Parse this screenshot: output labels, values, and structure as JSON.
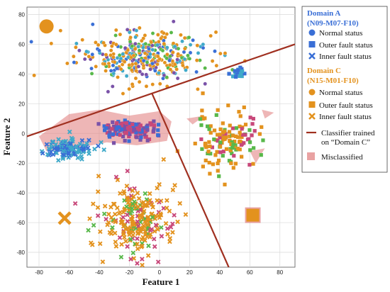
{
  "colors": {
    "domain_a": "#3a6fd6",
    "domain_a_alt": "#3fa9c9",
    "domain_c": "#e3921e",
    "misclassified": "#e07a7a",
    "classifier": "#a03020",
    "pink_marker": "#c8487a",
    "purple_marker": "#7a52a8",
    "green_marker": "#58b84a"
  },
  "chart_data": {
    "type": "scatter",
    "xlabel": "Feature 1",
    "ylabel": "Feature 2",
    "xlim": [
      -88,
      90
    ],
    "ylim": [
      -90,
      85
    ],
    "xticks": [
      -80,
      -60,
      -40,
      -20,
      0,
      20,
      40,
      60,
      80
    ],
    "yticks": [
      -80,
      -60,
      -40,
      -20,
      0,
      20,
      40,
      60,
      80
    ],
    "grid": true,
    "legend_placement": "right",
    "clusters": [
      {
        "name": "Domain A / Domain C normal status",
        "marker": "circle",
        "center": [
          -12,
          52
        ],
        "spread": [
          30,
          12
        ],
        "count": 380,
        "colors": [
          "#e3921e",
          "#e3921e",
          "#e3921e",
          "#3a6fd6",
          "#3fa9c9",
          "#58b84a",
          "#7a52a8"
        ]
      },
      {
        "name": "Domain A outer fault (small cluster)",
        "marker": "square",
        "center": [
          52,
          41
        ],
        "spread": [
          4,
          2
        ],
        "count": 25,
        "colors": [
          "#3a6fd6",
          "#3fa9c9"
        ]
      },
      {
        "name": "Domain A inner fault",
        "marker": "x",
        "center": [
          -62,
          -10
        ],
        "spread": [
          13,
          5
        ],
        "count": 130,
        "colors": [
          "#3a6fd6",
          "#3fa9c9"
        ]
      },
      {
        "name": "Domain A outer fault misclassified",
        "marker": "square",
        "center": [
          -20,
          3
        ],
        "spread": [
          13,
          4
        ],
        "count": 150,
        "colors": [
          "#c8487a",
          "#7a52a8",
          "#3a6fd6"
        ]
      },
      {
        "name": "Domain C outer fault",
        "marker": "square",
        "center": [
          45,
          -5
        ],
        "spread": [
          15,
          13
        ],
        "count": 140,
        "colors": [
          "#e3921e",
          "#e3921e",
          "#e3921e",
          "#58b84a",
          "#c8487a"
        ]
      },
      {
        "name": "Domain C inner fault",
        "marker": "x",
        "center": [
          -14,
          -58
        ],
        "spread": [
          18,
          17
        ],
        "count": 260,
        "colors": [
          "#e3921e",
          "#e3921e",
          "#e3921e",
          "#e3921e",
          "#58b84a",
          "#c8487a"
        ]
      }
    ],
    "classifier_lines": [
      {
        "x": [
          -88,
          90
        ],
        "y": [
          -2,
          60
        ]
      },
      {
        "x": [
          -5,
          46
        ],
        "y": [
          27,
          -90
        ]
      }
    ],
    "misclassified_regions": [
      {
        "points": [
          [
            -80,
            -2
          ],
          [
            -60,
            13
          ],
          [
            -40,
            16
          ],
          [
            -20,
            12
          ],
          [
            0,
            15
          ],
          [
            8,
            8
          ],
          [
            5,
            -5
          ],
          [
            -15,
            -8
          ],
          [
            -35,
            -6
          ],
          [
            -55,
            -10
          ],
          [
            -75,
            -12
          ]
        ]
      },
      {
        "points": [
          [
            18,
            10
          ],
          [
            30,
            12
          ],
          [
            22,
            6
          ]
        ]
      },
      {
        "points": [
          [
            68,
            16
          ],
          [
            76,
            14
          ],
          [
            70,
            10
          ]
        ]
      },
      {
        "points": [
          [
            60,
            -12
          ],
          [
            70,
            -10
          ],
          [
            64,
            -20
          ]
        ]
      }
    ],
    "big_markers": [
      {
        "marker": "circle",
        "x": -75,
        "y": 72,
        "color": "#e3921e"
      },
      {
        "marker": "x",
        "x": -63,
        "y": -57,
        "color": "#e3921e"
      },
      {
        "marker": "square",
        "x": 62,
        "y": -55,
        "color": "#e3921e"
      }
    ]
  },
  "legend": {
    "domain_a": {
      "title": "Domain A",
      "subtitle": "(N09-M07-F10)"
    },
    "domain_a_items": [
      {
        "marker": "circle",
        "label": "Normal status"
      },
      {
        "marker": "square",
        "label": "Outer fault status"
      },
      {
        "marker": "x",
        "label": "Inner fault status"
      }
    ],
    "domain_c": {
      "title": "Domain C",
      "subtitle": "(N15-M01-F10)"
    },
    "domain_c_items": [
      {
        "marker": "circle",
        "label": "Normal status"
      },
      {
        "marker": "square",
        "label": "Outer fault status"
      },
      {
        "marker": "x",
        "label": "Inner fault status"
      }
    ],
    "classifier": {
      "line1": "Classifier trained",
      "line2": "on “Domain C”"
    },
    "misclassified": "Misclassified"
  }
}
